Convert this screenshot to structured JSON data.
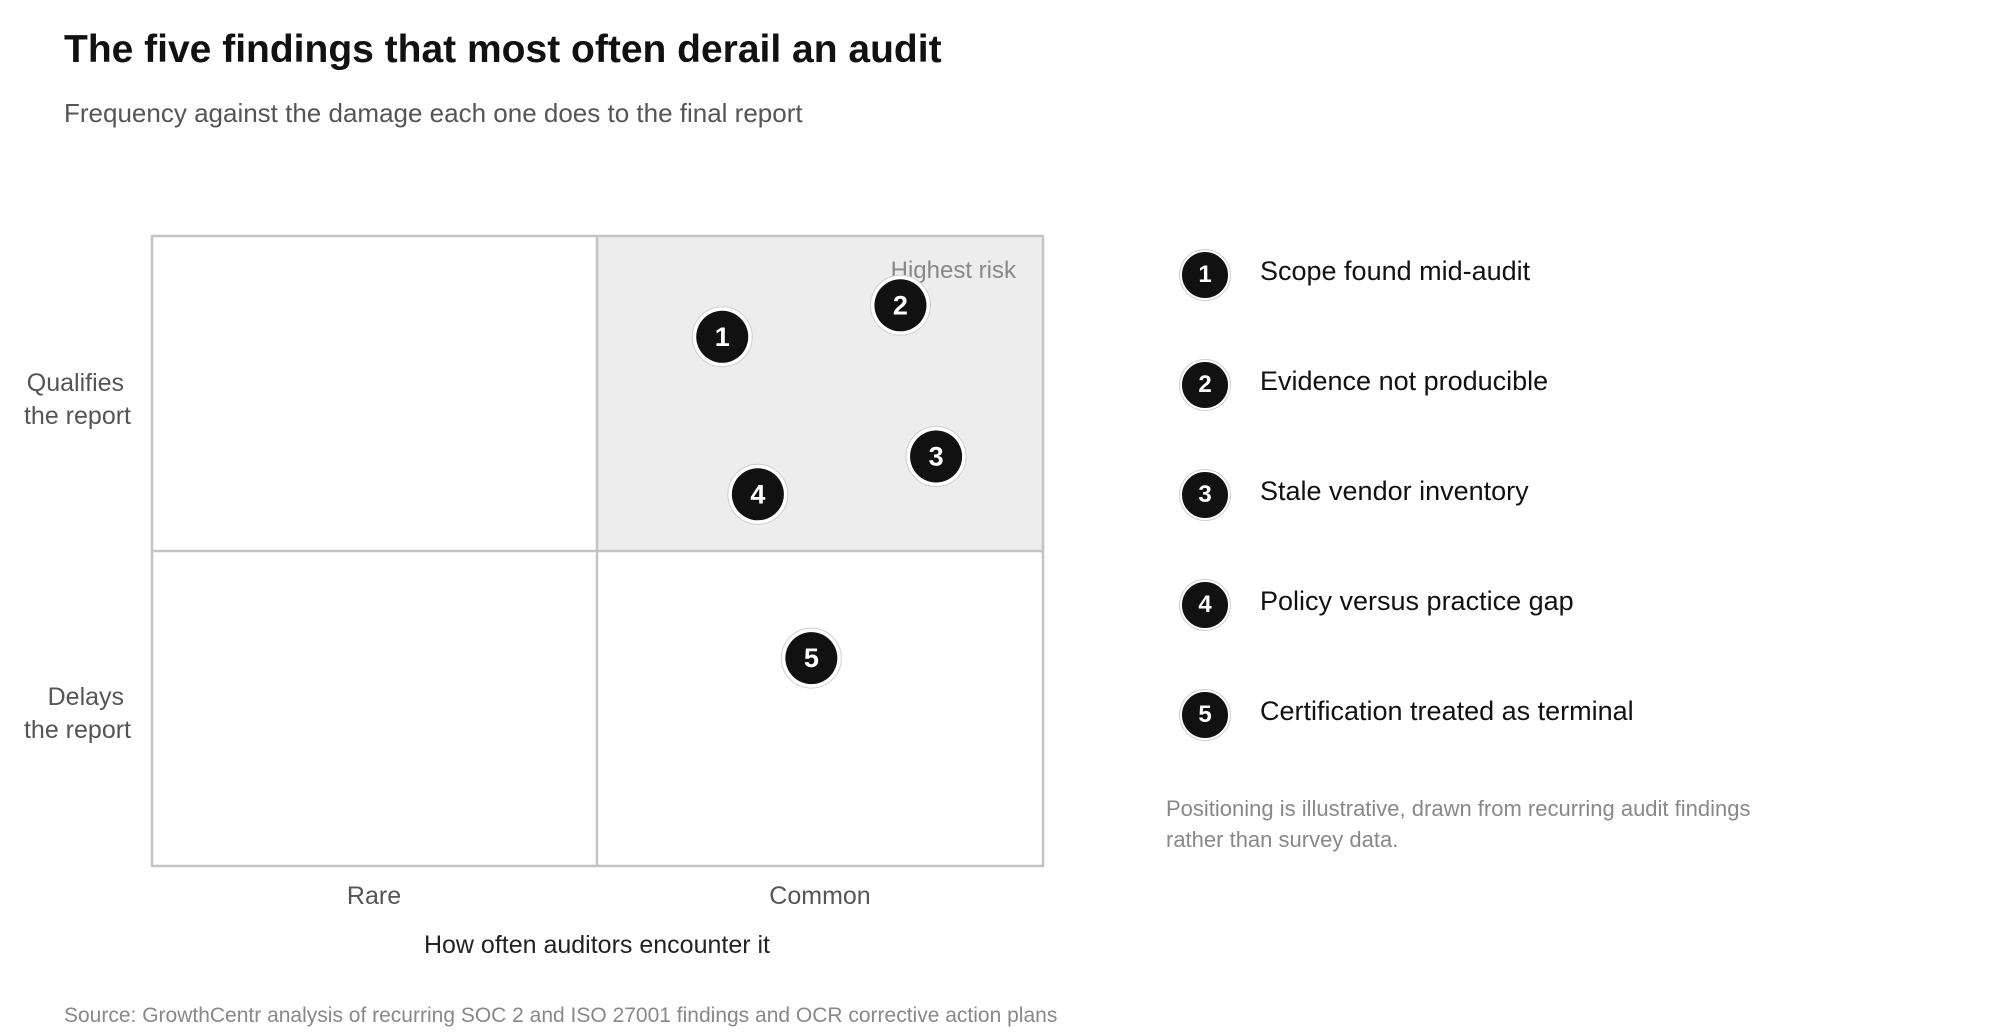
{
  "title": "The five findings that most often derail an audit",
  "subtitle": "Frequency against the damage each one does to the final report",
  "source": "Source: GrowthCentr analysis of recurring SOC 2 and ISO 27001 findings and OCR corrective action plans",
  "note": "Positioning is illustrative, drawn from recurring audit findings rather than survey data.",
  "colors": {
    "highlight_quadrant": "#ededed",
    "marker": "#111111",
    "grid": "#c4c4c4"
  },
  "chart_data": {
    "type": "scatter",
    "quadrant_label": "Highest risk",
    "highlighted_quadrant": "top-right",
    "xlabel": "How often auditors encounter it",
    "x_categories": [
      "Rare",
      "Common"
    ],
    "y_categories": [
      "Delays the report",
      "Qualifies the report"
    ],
    "y_category_lines": [
      [
        "Delays",
        "the report"
      ],
      [
        "Qualifies",
        "the report"
      ]
    ],
    "xlim": [
      0,
      2
    ],
    "ylim": [
      0,
      2
    ],
    "points": [
      {
        "id": "1",
        "label": "Scope found mid-audit",
        "x": 1.28,
        "y": 1.68
      },
      {
        "id": "2",
        "label": "Evidence not producible",
        "x": 1.68,
        "y": 1.78
      },
      {
        "id": "3",
        "label": "Stale vendor inventory",
        "x": 1.76,
        "y": 1.3
      },
      {
        "id": "4",
        "label": "Policy versus practice gap",
        "x": 1.36,
        "y": 1.18
      },
      {
        "id": "5",
        "label": "Certification treated as terminal",
        "x": 1.48,
        "y": 0.66
      }
    ]
  }
}
